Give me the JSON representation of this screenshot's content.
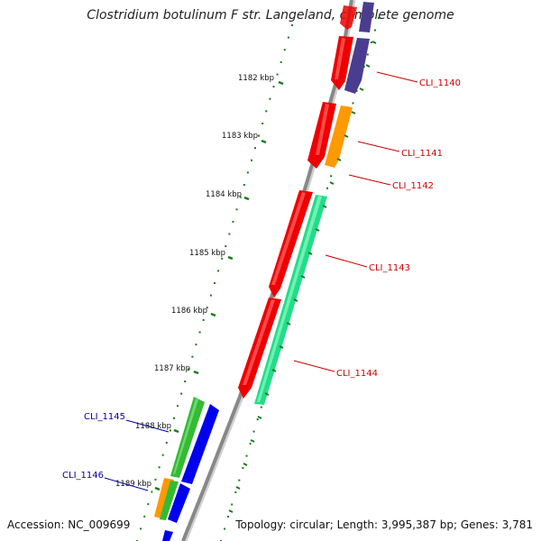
{
  "title": "Clostridium botulinum F str. Langeland, complete genome",
  "footer": {
    "accession": "Accession: NC_009699",
    "summary": "Topology: circular; Length: 3,995,387 bp; Genes: 3,781"
  },
  "ticks": [
    "1182 kbp",
    "1183 kbp",
    "1184 kbp",
    "1185 kbp",
    "1186 kbp",
    "1187 kbp",
    "1188 kbp",
    "1189 kbp"
  ],
  "genes": [
    {
      "name": "CLI_1140",
      "label_color": "#cc0000"
    },
    {
      "name": "CLI_1141",
      "label_color": "#cc0000"
    },
    {
      "name": "CLI_1142",
      "label_color": "#cc0000"
    },
    {
      "name": "CLI_1143",
      "label_color": "#cc0000"
    },
    {
      "name": "CLI_1144",
      "label_color": "#cc0000"
    },
    {
      "name": "CLI_1145",
      "label_color": "#000099"
    },
    {
      "name": "CLI_1146",
      "label_color": "#000099"
    }
  ],
  "colors": {
    "backbone": "#888888",
    "tick": "#1a7a1a",
    "cds_red": "#ee0000",
    "cds_purple": "#4a3d8f",
    "cds_orange": "#ff9900",
    "cds_seagreen": "#22dd88",
    "cds_green": "#33bb33",
    "cds_blue": "#0000ee"
  }
}
